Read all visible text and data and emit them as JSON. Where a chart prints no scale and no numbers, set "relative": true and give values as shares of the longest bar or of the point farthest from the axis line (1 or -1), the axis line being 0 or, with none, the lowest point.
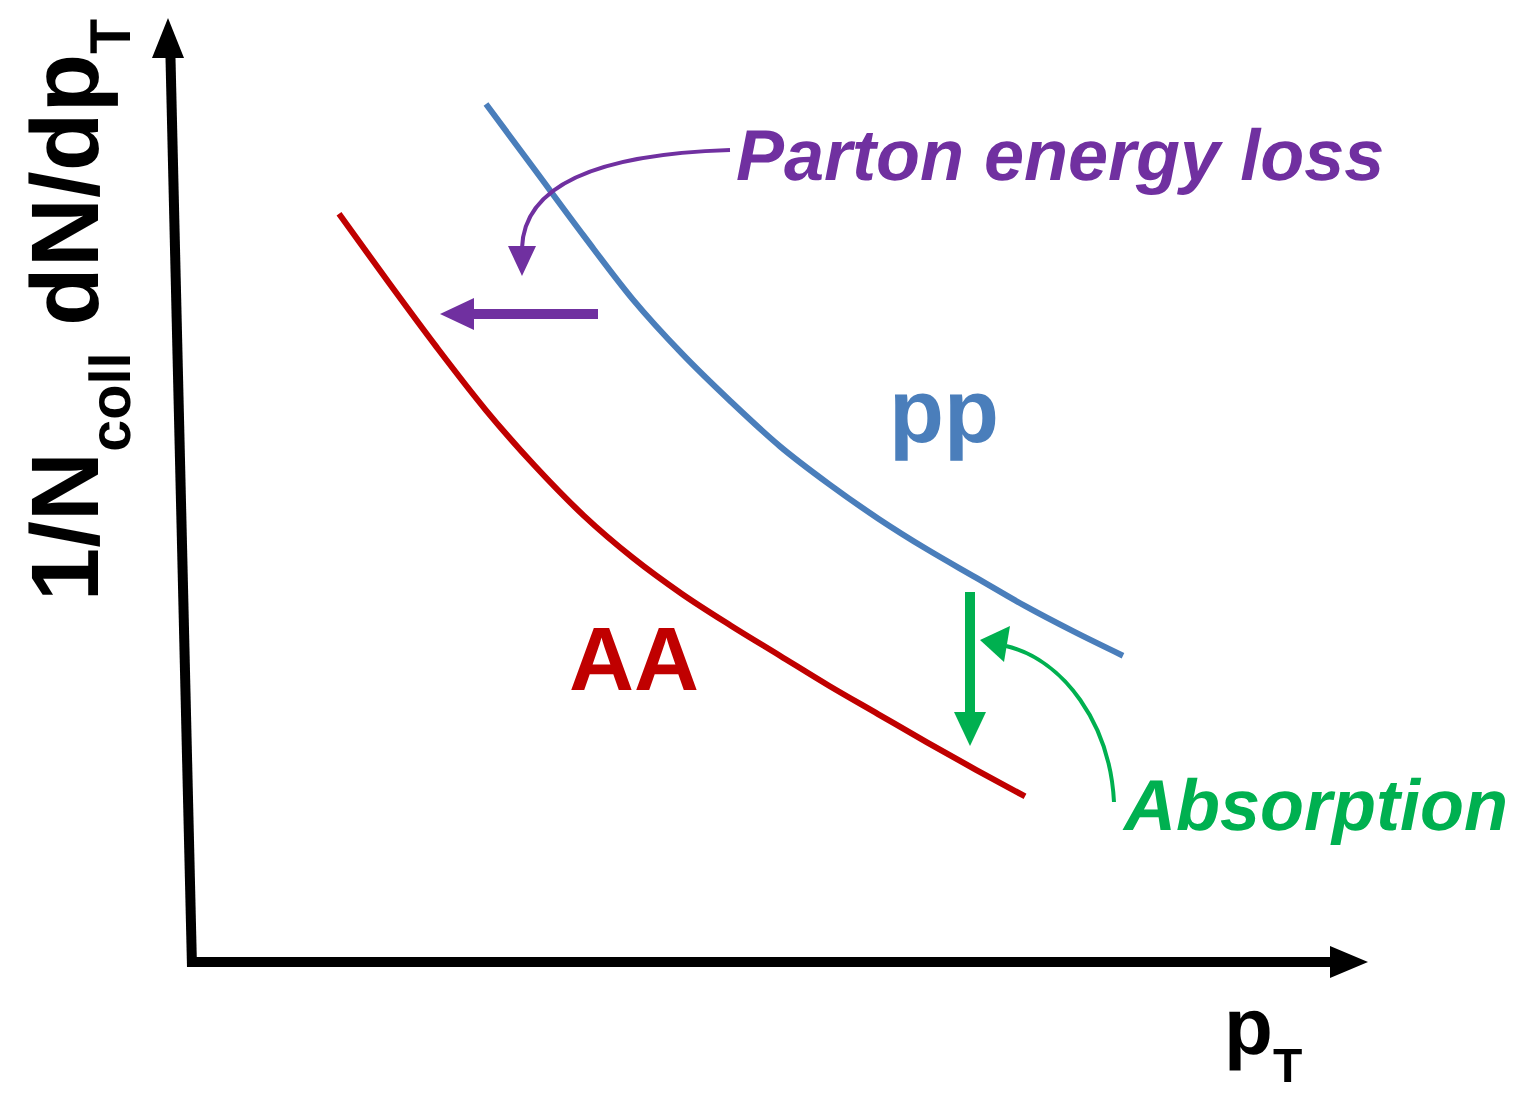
{
  "chart_data": {
    "type": "line",
    "relative": true,
    "xlabel": "p$_{T}$",
    "ylabel": "1/N$_{coll}$ dN/dp$_{T}$",
    "categories": [
      null,
      null,
      null,
      null,
      null,
      null,
      null,
      null,
      null,
      null,
      null,
      null,
      null,
      null,
      null,
      null,
      null,
      null,
      null,
      null,
      null,
      null,
      null
    ],
    "series": [
      {
        "name": "pp",
        "color": "#4a7ebb",
        "values": [
          null,
          null,
          null,
          null,
          null,
          1,
          0.923,
          0.846,
          0.772,
          0.709,
          0.653,
          0.601,
          0.557,
          0.517,
          0.481,
          0.448,
          0.415,
          0.385,
          0.357,
          null,
          null,
          null,
          null
        ]
      },
      {
        "name": "AA",
        "color": "#c00000",
        "values": [
          null,
          null,
          0.872,
          0.793,
          0.716,
          0.643,
          0.578,
          0.52,
          0.471,
          0.429,
          0.392,
          0.357,
          0.322,
          0.289,
          0.256,
          0.224,
          0.193,
          null,
          null,
          null,
          null,
          null,
          null
        ]
      }
    ],
    "annotations": [
      "Parton energy loss",
      "Absorption"
    ]
  }
}
